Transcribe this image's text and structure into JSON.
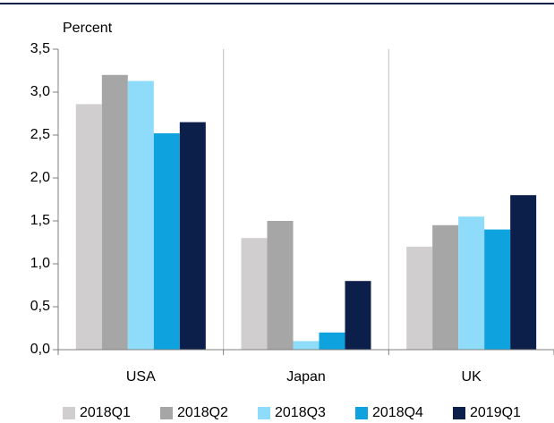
{
  "chart_data": {
    "type": "bar",
    "y_label": "Percent",
    "categories": [
      "USA",
      "Japan",
      "UK"
    ],
    "series": [
      {
        "name": "2018Q1",
        "color": "#d0cece",
        "values": [
          2.86,
          1.3,
          1.2
        ]
      },
      {
        "name": "2018Q2",
        "color": "#a6a6a6",
        "values": [
          3.2,
          1.5,
          1.45
        ]
      },
      {
        "name": "2018Q3",
        "color": "#8edcf9",
        "values": [
          3.13,
          0.1,
          1.55
        ]
      },
      {
        "name": "2018Q4",
        "color": "#0ea2de",
        "values": [
          2.52,
          0.2,
          1.4
        ]
      },
      {
        "name": "2019Q1",
        "color": "#0c1f4b",
        "values": [
          2.65,
          0.8,
          1.8
        ]
      }
    ],
    "ylim": [
      0,
      3.5
    ],
    "yticks": [
      {
        "value": 0,
        "label": "0,0"
      },
      {
        "value": 0.5,
        "label": "0,5"
      },
      {
        "value": 1,
        "label": "1,0"
      },
      {
        "value": 1.5,
        "label": "1,5"
      },
      {
        "value": 2,
        "label": "2,0"
      },
      {
        "value": 2.5,
        "label": "2,5"
      },
      {
        "value": 3,
        "label": "3,0"
      },
      {
        "value": 3.5,
        "label": "3,5"
      }
    ],
    "grid": false,
    "legend": "bottom"
  }
}
